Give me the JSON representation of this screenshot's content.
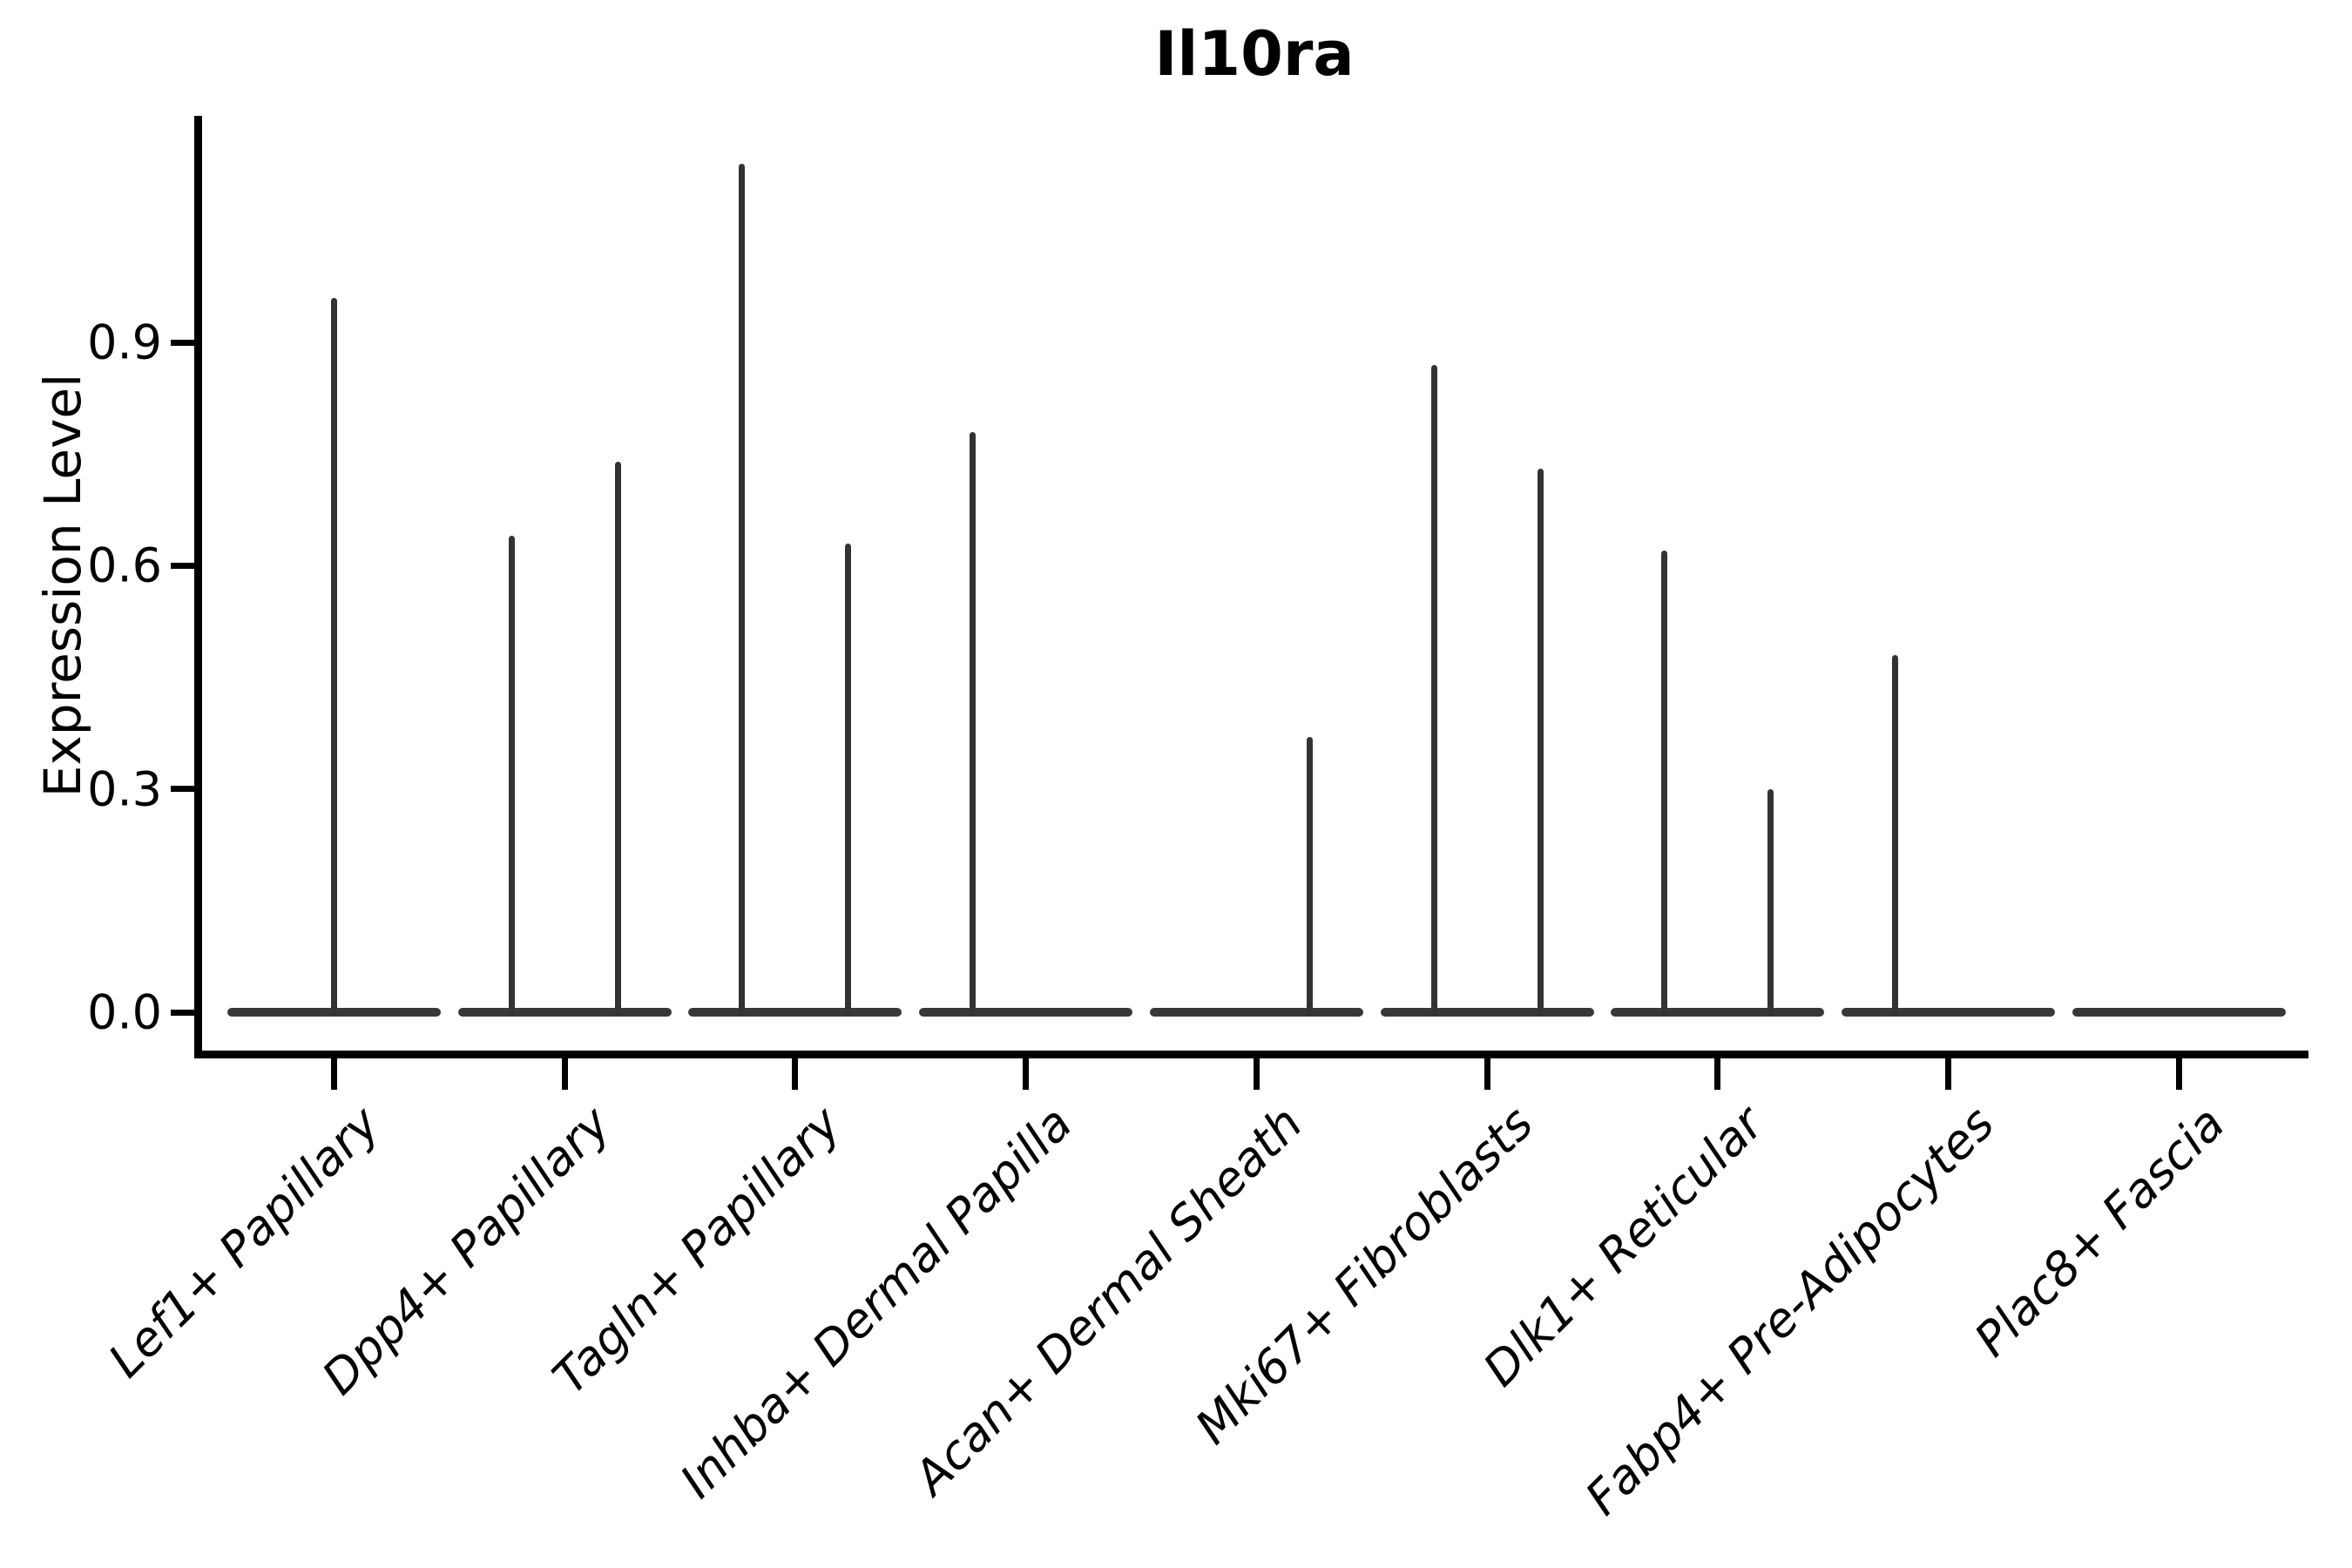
{
  "chart_data": {
    "type": "violin",
    "title": "Il10ra",
    "ylabel": "Expression Level",
    "xlabel": "",
    "ytick_labels": [
      "0.0",
      "0.3",
      "0.6",
      "0.9"
    ],
    "ytick_values": [
      0.0,
      0.3,
      0.6,
      0.9
    ],
    "ylim": [
      -0.06,
      1.2
    ],
    "grid": false,
    "legend": "none",
    "colors": {
      "violin": "#333333",
      "axis": "#000000",
      "text": "#000000",
      "background": "#ffffff"
    },
    "categories": [
      "Lef1+ Papillary",
      "Dpp4+ Papillary",
      "Tagln+ Papillary",
      "Inhba+ Dermal Papilla",
      "Acan+ Dermal Sheath",
      "Mki67+ Fibroblasts",
      "Dlk1+ Reticular",
      "Fabp4+ Pre-Adipocytes",
      "Plac8+ Fascia"
    ],
    "violins": [
      {
        "category": "Lef1+ Papillary",
        "zero_base": true,
        "spikes": [
          {
            "position": "center",
            "max": 0.96
          }
        ]
      },
      {
        "category": "Dpp4+ Papillary",
        "zero_base": true,
        "spikes": [
          {
            "position": "left",
            "max": 0.64
          },
          {
            "position": "right",
            "max": 0.74
          }
        ]
      },
      {
        "category": "Tagln+ Papillary",
        "zero_base": true,
        "spikes": [
          {
            "position": "left",
            "max": 1.14
          },
          {
            "position": "right",
            "max": 0.63
          }
        ]
      },
      {
        "category": "Inhba+ Dermal Papilla",
        "zero_base": true,
        "spikes": [
          {
            "position": "left",
            "max": 0.78
          }
        ]
      },
      {
        "category": "Acan+ Dermal Sheath",
        "zero_base": true,
        "spikes": [
          {
            "position": "right",
            "max": 0.37
          }
        ]
      },
      {
        "category": "Mki67+ Fibroblasts",
        "zero_base": true,
        "spikes": [
          {
            "position": "left",
            "max": 0.87
          },
          {
            "position": "right",
            "max": 0.73
          }
        ]
      },
      {
        "category": "Dlk1+ Reticular",
        "zero_base": true,
        "spikes": [
          {
            "position": "left",
            "max": 0.62
          },
          {
            "position": "right",
            "max": 0.3
          }
        ]
      },
      {
        "category": "Fabp4+ Pre-Adipocytes",
        "zero_base": true,
        "spikes": [
          {
            "position": "left",
            "max": 0.48
          }
        ]
      },
      {
        "category": "Plac8+ Fascia",
        "zero_base": true,
        "spikes": []
      }
    ]
  }
}
